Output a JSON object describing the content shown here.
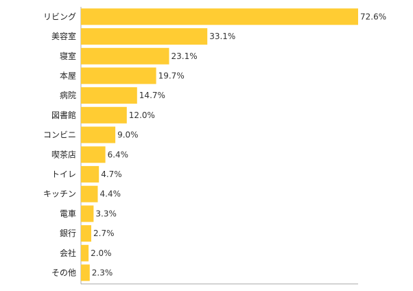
{
  "chart_data": {
    "type": "bar",
    "orientation": "horizontal",
    "categories": [
      "リビング",
      "美容室",
      "寝室",
      "本屋",
      "病院",
      "図書館",
      "コンビニ",
      "喫茶店",
      "トイレ",
      "キッチン",
      "電車",
      "銀行",
      "会社",
      "その他"
    ],
    "values": [
      72.6,
      33.1,
      23.1,
      19.7,
      14.7,
      12.0,
      9.0,
      6.4,
      4.7,
      4.4,
      3.3,
      2.7,
      2.0,
      2.3
    ],
    "value_labels": [
      "72.6%",
      "33.1%",
      "23.1%",
      "19.7%",
      "14.7%",
      "12.0%",
      "9.0%",
      "6.4%",
      "4.7%",
      "4.4%",
      "3.3%",
      "2.7%",
      "2.0%",
      "2.3%"
    ],
    "unit": "%",
    "title": "",
    "xlabel": "",
    "ylabel": "",
    "xlim": [
      0,
      72.6
    ],
    "grid": false,
    "legend": "none",
    "colors": {
      "bar": "#FFCC33",
      "axis": "#aaaaaa",
      "text": "#222222"
    }
  }
}
